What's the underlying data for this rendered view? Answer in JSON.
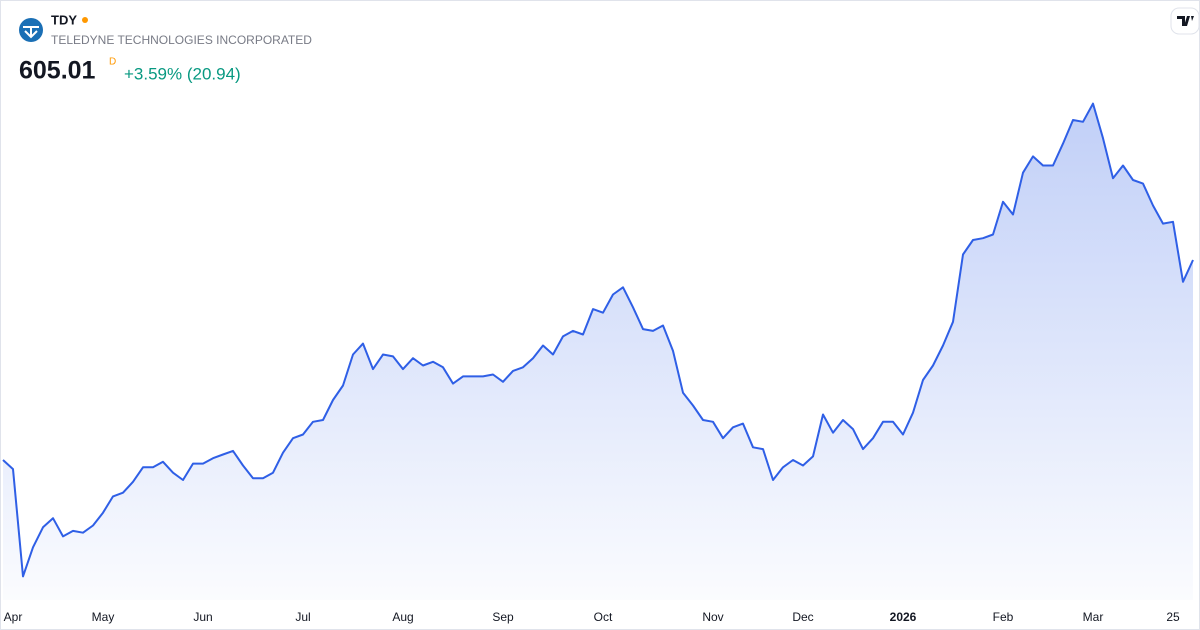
{
  "header": {
    "ticker": "TDY",
    "company": "TELEDYNE TECHNOLOGIES INCORPORATED",
    "price": "605.01",
    "interval": "D",
    "change": "+3.59% (20.94)"
  },
  "chart_data": {
    "type": "area",
    "color": "#2f5fe6",
    "ylim": [
      418,
      748
    ],
    "categories": [
      null,
      "Apr",
      null,
      null,
      null,
      null,
      null,
      null,
      null,
      null,
      "May",
      null,
      null,
      null,
      null,
      null,
      null,
      null,
      null,
      null,
      "Jun",
      null,
      null,
      null,
      null,
      null,
      null,
      null,
      null,
      null,
      "Jul",
      null,
      null,
      null,
      null,
      null,
      null,
      null,
      null,
      null,
      "Aug",
      null,
      null,
      null,
      null,
      null,
      null,
      null,
      null,
      null,
      "Sep",
      null,
      null,
      null,
      null,
      null,
      null,
      null,
      null,
      null,
      "Oct",
      null,
      null,
      null,
      null,
      null,
      null,
      null,
      null,
      null,
      null,
      "Nov",
      null,
      null,
      null,
      null,
      null,
      null,
      null,
      null,
      "Dec",
      null,
      null,
      null,
      null,
      null,
      null,
      null,
      null,
      null,
      "2026",
      null,
      null,
      null,
      null,
      null,
      null,
      null,
      null,
      null,
      "Feb",
      null,
      null,
      null,
      null,
      null,
      null,
      null,
      null,
      "Mar",
      null,
      null,
      null,
      null,
      null,
      null,
      null,
      "25",
      null,
      null
    ],
    "values": [
      495,
      490,
      431,
      447,
      458,
      463,
      453,
      456,
      455,
      459,
      466,
      475,
      477,
      483,
      491,
      491,
      494,
      488,
      484,
      493,
      493,
      496,
      498,
      500,
      492,
      485,
      485,
      488,
      499,
      507,
      509,
      516,
      517,
      528,
      536,
      553,
      559,
      545,
      553,
      552,
      545,
      551,
      547,
      549,
      546,
      537,
      541,
      541,
      541,
      542,
      538,
      544,
      546,
      551,
      558,
      553,
      563,
      566,
      564,
      578,
      576,
      586,
      590,
      579,
      567,
      566,
      569,
      555,
      532,
      525,
      517,
      516,
      507,
      513,
      515,
      502,
      501,
      484,
      491,
      495,
      492,
      497,
      520,
      510,
      517,
      512,
      501,
      507,
      516,
      516,
      509,
      521,
      539,
      547,
      558,
      571,
      608,
      616,
      617,
      619,
      637,
      630,
      653,
      662,
      657,
      657,
      669,
      682,
      681,
      691,
      672,
      650,
      657,
      649,
      647,
      635,
      625,
      626,
      593,
      605.01
    ]
  }
}
